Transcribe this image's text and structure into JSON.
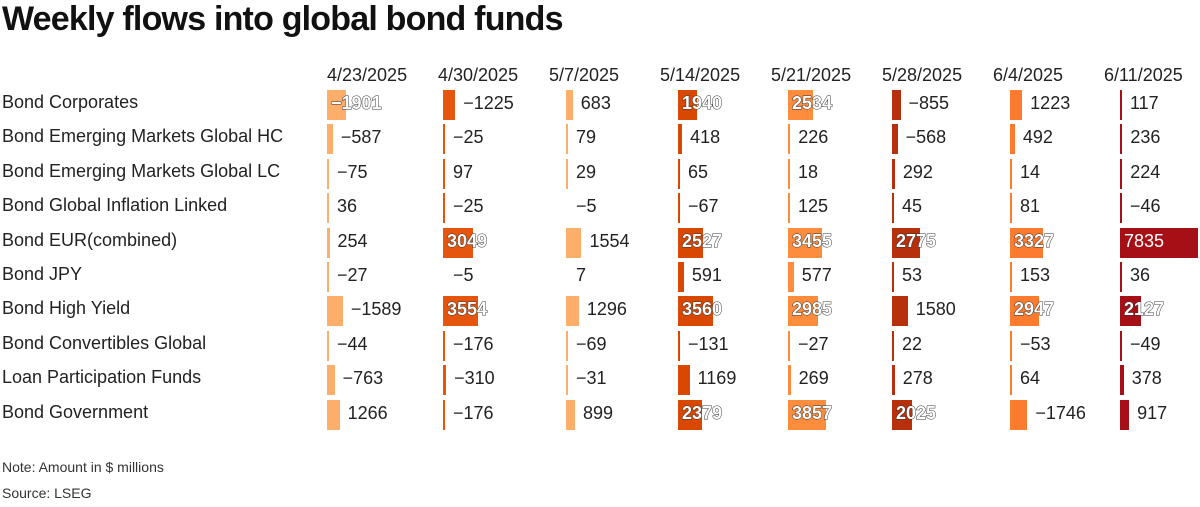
{
  "title": "Weekly flows into global bond funds",
  "footer": {
    "note": "Note: Amount in $ millions",
    "source": "Source: LSEG"
  },
  "columns": [
    "4/23/2025",
    "4/30/2025",
    "5/7/2025",
    "5/14/2025",
    "5/21/2025",
    "5/28/2025",
    "6/4/2025",
    "6/11/2025"
  ],
  "column_colors": [
    "#fdae6b",
    "#e6550d",
    "#fdae6b",
    "#d94801",
    "#fd8d3c",
    "#b5300b",
    "#fd7b2f",
    "#a50f15"
  ],
  "rows": [
    {
      "label": "Bond Corporates",
      "values": [
        -1901,
        -1225,
        683,
        1940,
        2534,
        -855,
        1223,
        117
      ]
    },
    {
      "label": "Bond Emerging Markets Global HC",
      "values": [
        -587,
        -25,
        79,
        418,
        226,
        -568,
        492,
        236
      ]
    },
    {
      "label": "Bond Emerging Markets Global LC",
      "values": [
        -75,
        97,
        29,
        65,
        18,
        292,
        14,
        224
      ]
    },
    {
      "label": "Bond Global Inflation Linked",
      "values": [
        36,
        -25,
        -5,
        -67,
        125,
        45,
        81,
        -46
      ]
    },
    {
      "label": "Bond EUR(combined)",
      "values": [
        254,
        3049,
        1554,
        2527,
        3455,
        2775,
        3327,
        7835
      ]
    },
    {
      "label": "Bond JPY",
      "values": [
        -27,
        -5,
        7,
        591,
        577,
        53,
        153,
        36
      ]
    },
    {
      "label": "Bond High Yield",
      "values": [
        -1589,
        3554,
        1296,
        3560,
        2985,
        1580,
        2947,
        2127
      ]
    },
    {
      "label": "Bond Convertibles Global",
      "values": [
        -44,
        -176,
        -69,
        -131,
        -27,
        22,
        -53,
        -49
      ]
    },
    {
      "label": "Loan Participation Funds",
      "values": [
        -763,
        -310,
        -31,
        1169,
        269,
        278,
        64,
        378
      ]
    },
    {
      "label": "Bond Government",
      "values": [
        1266,
        -176,
        899,
        2379,
        3857,
        2025,
        -1746,
        917
      ]
    }
  ],
  "chart_data": {
    "type": "table",
    "title": "Weekly flows into global bond funds",
    "unit": "$ millions",
    "categories": [
      "Bond Corporates",
      "Bond Emerging Markets Global HC",
      "Bond Emerging Markets Global LC",
      "Bond Global Inflation Linked",
      "Bond EUR(combined)",
      "Bond JPY",
      "Bond High Yield",
      "Bond Convertibles Global",
      "Loan Participation Funds",
      "Bond Government"
    ],
    "series": [
      {
        "name": "4/23/2025",
        "values": [
          -1901,
          -587,
          -75,
          36,
          254,
          -27,
          -1589,
          -44,
          -763,
          1266
        ]
      },
      {
        "name": "4/30/2025",
        "values": [
          -1225,
          -25,
          97,
          -25,
          3049,
          -5,
          3554,
          -176,
          -310,
          -176
        ]
      },
      {
        "name": "5/7/2025",
        "values": [
          683,
          79,
          29,
          -5,
          1554,
          7,
          1296,
          -69,
          -31,
          899
        ]
      },
      {
        "name": "5/14/2025",
        "values": [
          1940,
          418,
          65,
          -67,
          2527,
          591,
          3560,
          -131,
          1169,
          2379
        ]
      },
      {
        "name": "5/21/2025",
        "values": [
          2534,
          226,
          18,
          125,
          3455,
          577,
          2985,
          -27,
          269,
          3857
        ]
      },
      {
        "name": "5/28/2025",
        "values": [
          -855,
          -568,
          292,
          45,
          2775,
          53,
          1580,
          22,
          278,
          2025
        ]
      },
      {
        "name": "6/4/2025",
        "values": [
          1223,
          492,
          14,
          81,
          3327,
          153,
          2947,
          -53,
          64,
          -1746
        ]
      },
      {
        "name": "6/11/2025",
        "values": [
          117,
          236,
          224,
          -46,
          7835,
          36,
          2127,
          -49,
          378,
          917
        ]
      }
    ],
    "notes": [
      "Note: Amount in $ millions",
      "Source: LSEG"
    ]
  }
}
